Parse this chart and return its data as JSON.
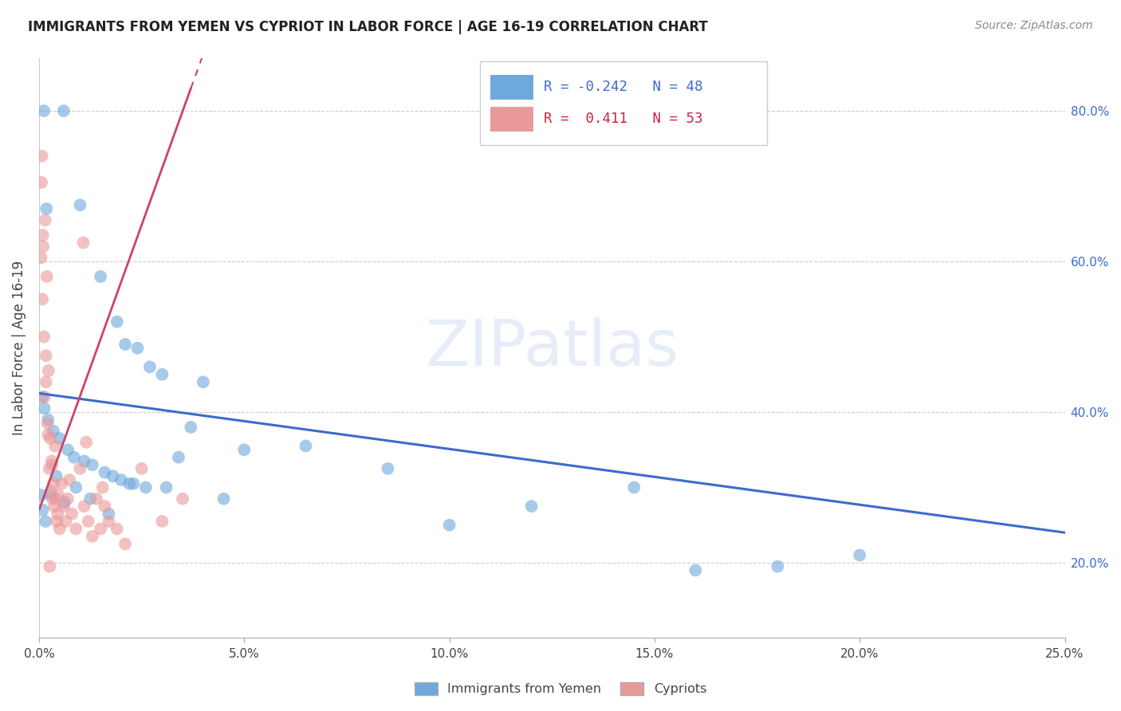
{
  "title": "IMMIGRANTS FROM YEMEN VS CYPRIOT IN LABOR FORCE | AGE 16-19 CORRELATION CHART",
  "source": "Source: ZipAtlas.com",
  "ylabel": "In Labor Force | Age 16-19",
  "x_tick_labels": [
    "0.0%",
    "5.0%",
    "10.0%",
    "15.0%",
    "20.0%",
    "25.0%"
  ],
  "x_tick_values": [
    0.0,
    5.0,
    10.0,
    15.0,
    20.0,
    25.0
  ],
  "y_tick_labels": [
    "20.0%",
    "40.0%",
    "60.0%",
    "80.0%"
  ],
  "y_tick_values": [
    20.0,
    40.0,
    60.0,
    80.0
  ],
  "xlim": [
    0.0,
    25.0
  ],
  "ylim": [
    10.0,
    87.0
  ],
  "legend_blue_label": "Immigrants from Yemen",
  "legend_pink_label": "Cypriots",
  "blue_R": "-0.242",
  "blue_N": "48",
  "pink_R": " 0.411",
  "pink_N": "53",
  "blue_color": "#6fa8dc",
  "pink_color": "#ea9999",
  "blue_line_color": "#3d6bcc",
  "pink_line_color": "#cc4466",
  "watermark_text": "ZIPatlas",
  "blue_scatter_x": [
    0.12,
    0.6,
    0.18,
    1.0,
    1.5,
    1.9,
    2.1,
    2.4,
    2.7,
    3.0,
    0.08,
    0.13,
    0.22,
    0.35,
    0.5,
    0.7,
    0.85,
    1.1,
    1.3,
    1.6,
    1.8,
    2.0,
    2.3,
    2.6,
    3.1,
    3.4,
    3.7,
    4.0,
    4.5,
    5.0,
    6.5,
    8.5,
    10.0,
    12.0,
    14.5,
    16.0,
    18.0,
    20.0,
    0.05,
    0.09,
    0.16,
    0.28,
    0.42,
    0.62,
    0.9,
    1.25,
    1.7,
    2.2
  ],
  "blue_scatter_y": [
    80.0,
    80.0,
    67.0,
    67.5,
    58.0,
    52.0,
    49.0,
    48.5,
    46.0,
    45.0,
    42.0,
    40.5,
    39.0,
    37.5,
    36.5,
    35.0,
    34.0,
    33.5,
    33.0,
    32.0,
    31.5,
    31.0,
    30.5,
    30.0,
    30.0,
    34.0,
    38.0,
    44.0,
    28.5,
    35.0,
    35.5,
    32.5,
    25.0,
    27.5,
    30.0,
    19.0,
    19.5,
    21.0,
    29.0,
    27.0,
    25.5,
    29.0,
    31.5,
    28.0,
    30.0,
    28.5,
    26.5,
    30.5
  ],
  "pink_scatter_x": [
    0.05,
    0.08,
    0.1,
    0.12,
    0.15,
    0.17,
    0.19,
    0.21,
    0.23,
    0.25,
    0.27,
    0.29,
    0.31,
    0.33,
    0.35,
    0.37,
    0.39,
    0.41,
    0.43,
    0.45,
    0.5,
    0.55,
    0.6,
    0.65,
    0.7,
    0.8,
    0.9,
    1.0,
    1.1,
    1.2,
    1.3,
    1.4,
    1.5,
    1.6,
    1.7,
    1.9,
    2.1,
    2.5,
    3.0,
    3.5,
    0.06,
    0.09,
    0.13,
    0.17,
    0.22,
    0.32,
    0.47,
    0.74,
    1.15,
    1.55,
    0.07,
    0.26,
    1.08
  ],
  "pink_scatter_y": [
    60.5,
    55.0,
    62.0,
    50.0,
    65.5,
    44.0,
    58.0,
    38.5,
    45.5,
    32.5,
    36.5,
    29.5,
    33.5,
    28.5,
    30.5,
    27.5,
    35.5,
    28.5,
    25.5,
    26.5,
    24.5,
    30.5,
    27.5,
    25.5,
    28.5,
    26.5,
    24.5,
    32.5,
    27.5,
    25.5,
    23.5,
    28.5,
    24.5,
    27.5,
    25.5,
    24.5,
    22.5,
    32.5,
    25.5,
    28.5,
    70.5,
    63.5,
    42.0,
    47.5,
    37.0,
    33.0,
    29.0,
    31.0,
    36.0,
    30.0,
    74.0,
    19.5,
    62.5
  ],
  "blue_line_x0": 0.0,
  "blue_line_x1": 25.0,
  "blue_line_y0": 42.5,
  "blue_line_y1": 24.0,
  "pink_line_x0": 0.0,
  "pink_line_x1": 3.7,
  "pink_line_y0": 27.0,
  "pink_line_y1": 83.0
}
